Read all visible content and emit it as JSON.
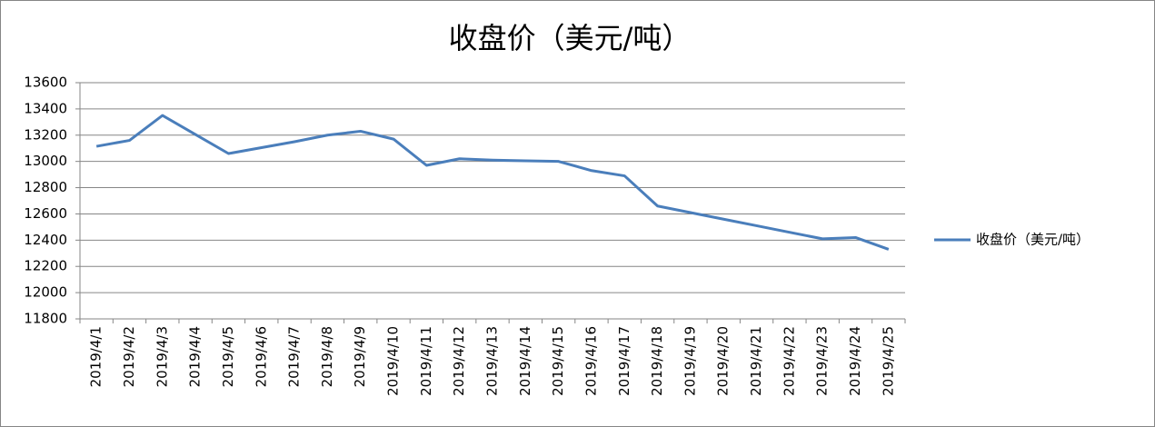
{
  "chart_data": {
    "type": "line",
    "title": "收盘价（美元/吨）",
    "categories": [
      "2019/4/1",
      "2019/4/2",
      "2019/4/3",
      "2019/4/4",
      "2019/4/5",
      "2019/4/6",
      "2019/4/7",
      "2019/4/8",
      "2019/4/9",
      "2019/4/10",
      "2019/4/11",
      "2019/4/12",
      "2019/4/13",
      "2019/4/14",
      "2019/4/15",
      "2019/4/16",
      "2019/4/17",
      "2019/4/18",
      "2019/4/19",
      "2019/4/20",
      "2019/4/21",
      "2019/4/22",
      "2019/4/23",
      "2019/4/24",
      "2019/4/25"
    ],
    "series": [
      {
        "name": "收盘价（美元/吨）",
        "color": "#4a7ebb",
        "values": [
          13115,
          13160,
          13350,
          13205,
          13060,
          13105,
          13150,
          13200,
          13230,
          13170,
          12970,
          13020,
          13010,
          13005,
          13000,
          12930,
          12890,
          12660,
          12610,
          12560,
          12510,
          12460,
          12410,
          12420,
          12330
        ]
      }
    ],
    "ylim": [
      11800,
      13600
    ],
    "yticks": [
      11800,
      12000,
      12200,
      12400,
      12600,
      12800,
      13000,
      13200,
      13400,
      13600
    ],
    "grid": true,
    "legend": "right"
  }
}
